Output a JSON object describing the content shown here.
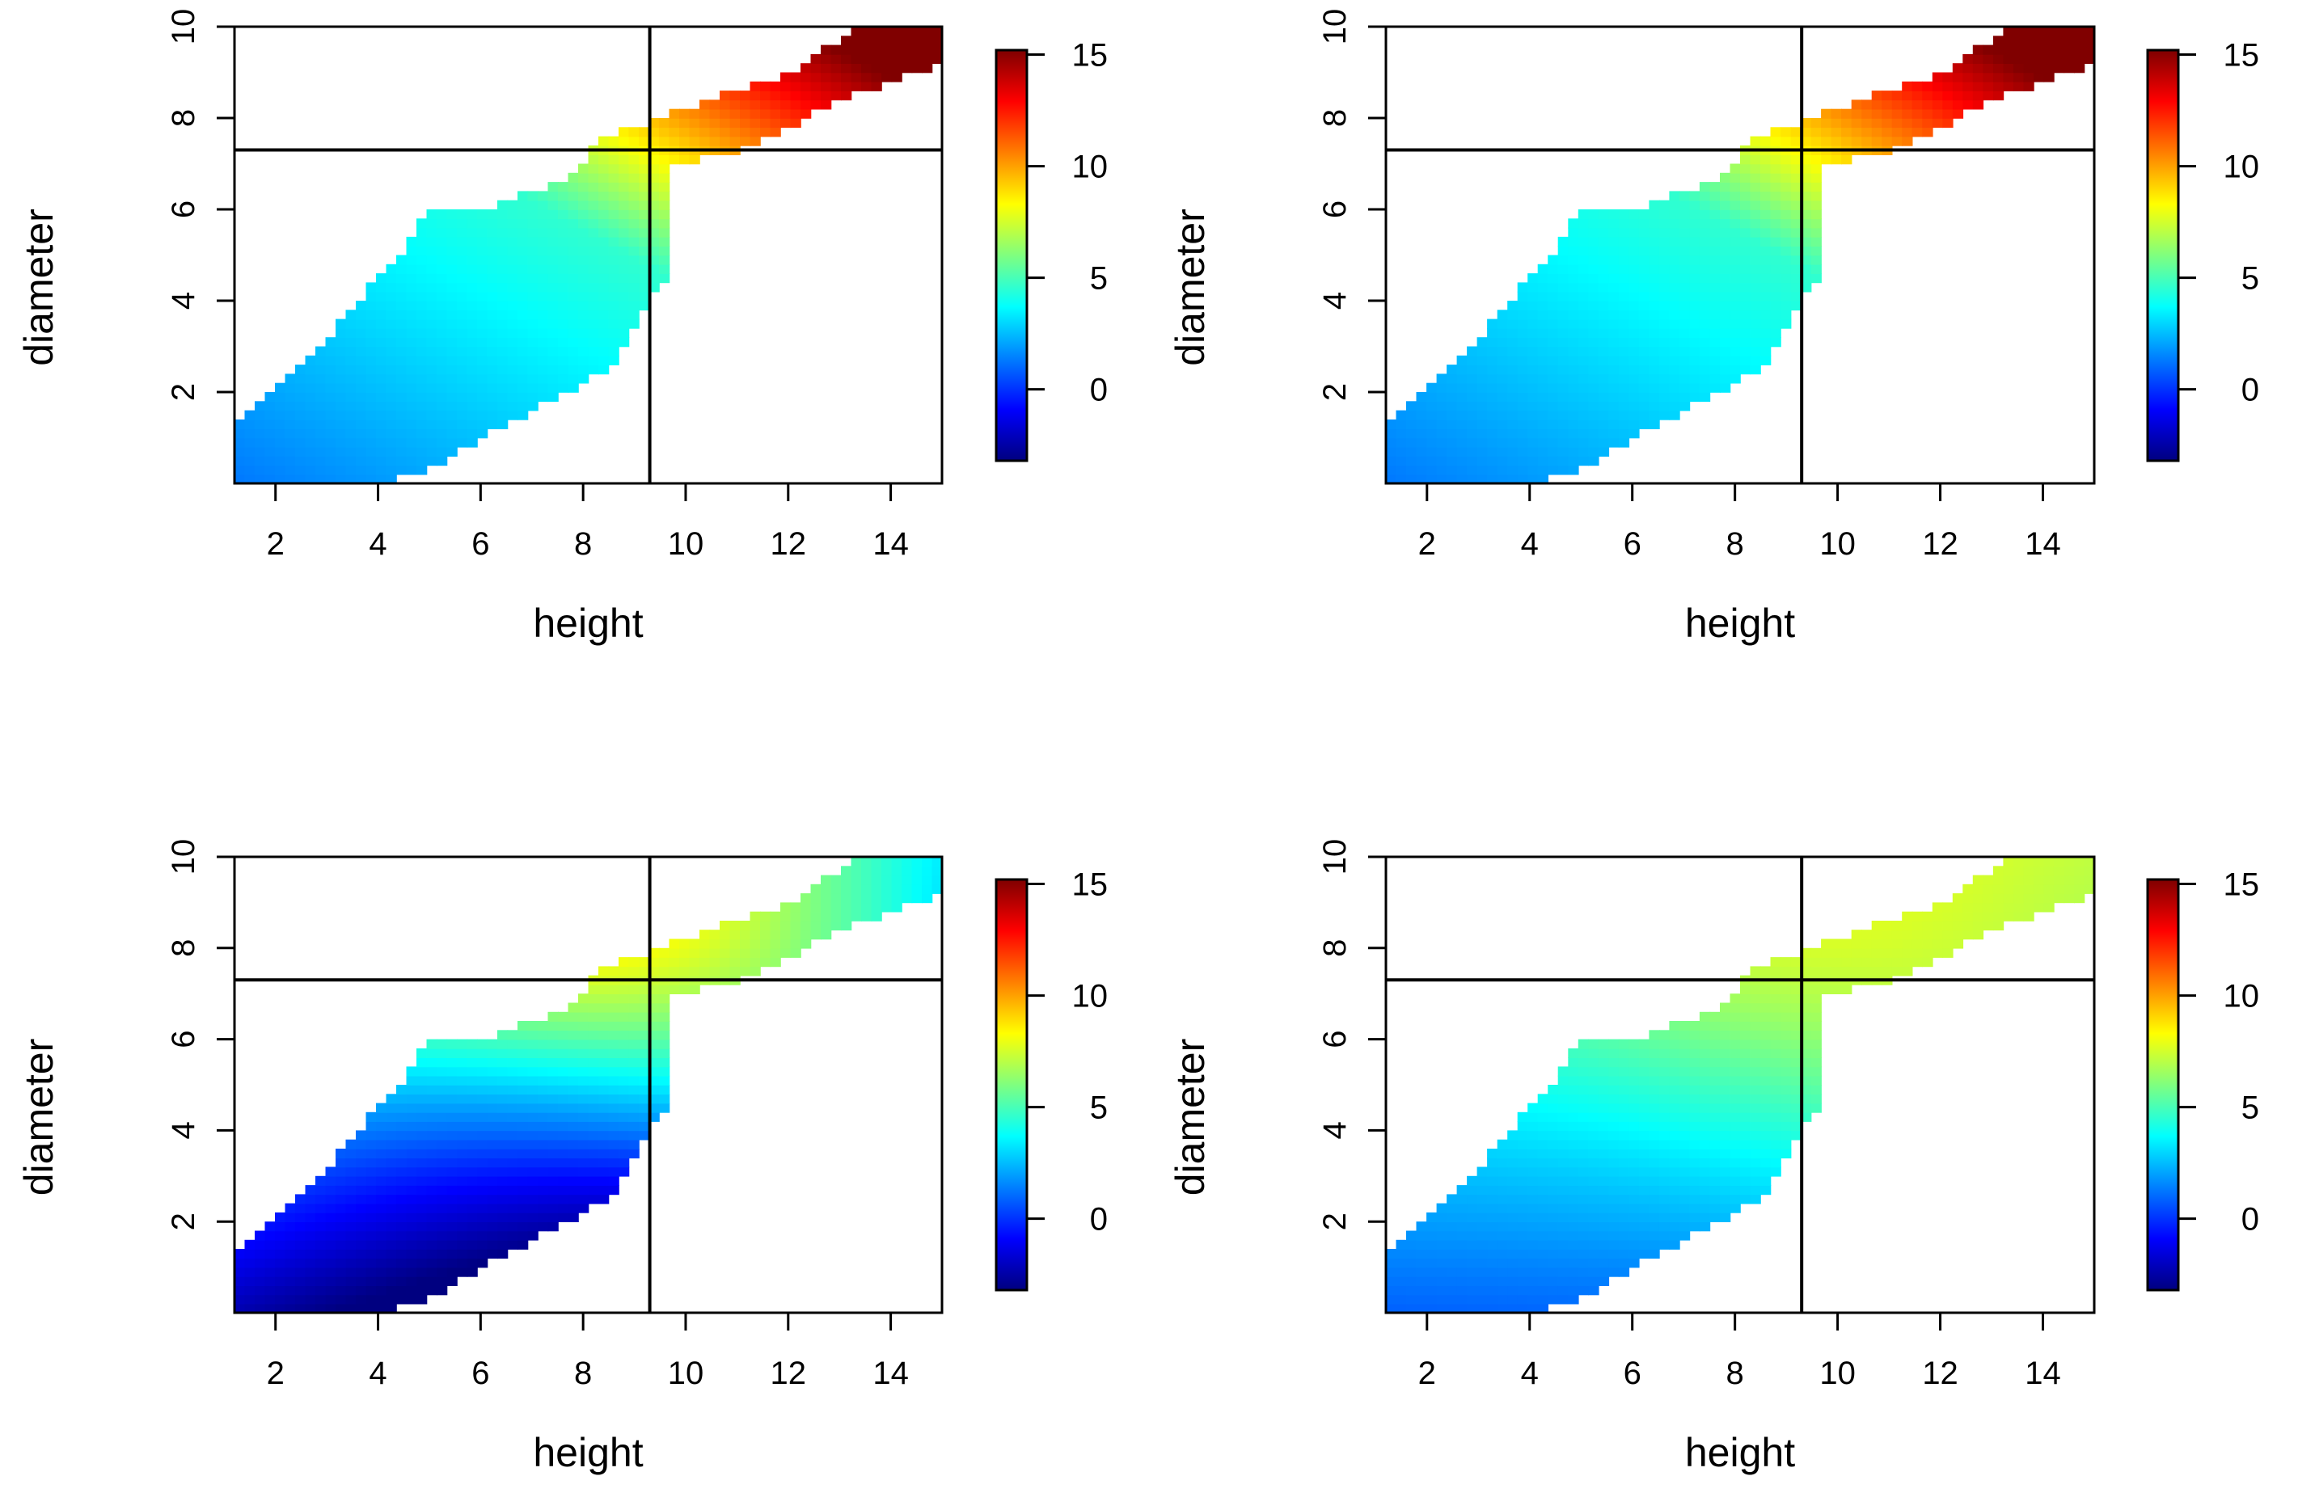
{
  "chart_data": [
    {
      "type": "heatmap",
      "panel": "top-left",
      "xlabel": "height",
      "ylabel": "diameter",
      "xlim": [
        1.2,
        15.0
      ],
      "ylim": [
        0.0,
        10.0
      ],
      "xticks": [
        2,
        4,
        6,
        8,
        10,
        12,
        14
      ],
      "yticks": [
        2,
        4,
        6,
        8,
        10
      ],
      "ref_lines": {
        "x": 9.3,
        "y": 7.3
      },
      "colorbar": {
        "ticks": [
          0,
          5,
          10,
          15
        ],
        "range": [
          -3.2,
          15.2
        ]
      },
      "surface": {
        "base": 1.0,
        "ramp_start": 6.5,
        "ramp_gain": 1.9,
        "curve": 0.0,
        "slope": 0.0
      }
    },
    {
      "type": "heatmap",
      "panel": "top-right",
      "xlabel": "height",
      "ylabel": "diameter",
      "xlim": [
        1.2,
        15.0
      ],
      "ylim": [
        0.0,
        10.0
      ],
      "xticks": [
        2,
        4,
        6,
        8,
        10,
        12,
        14
      ],
      "yticks": [
        2,
        4,
        6,
        8,
        10
      ],
      "ref_lines": {
        "x": 9.3,
        "y": 7.3
      },
      "colorbar": {
        "ticks": [
          0,
          5,
          10,
          15
        ],
        "range": [
          -3.2,
          15.2
        ]
      },
      "surface": {
        "base": 1.0,
        "ramp_start": 6.5,
        "ramp_gain": 1.9,
        "curve": 0.0,
        "slope": 0.0
      }
    },
    {
      "type": "heatmap",
      "panel": "bottom-left",
      "xlabel": "height",
      "ylabel": "diameter",
      "xlim": [
        1.2,
        15.0
      ],
      "ylim": [
        0.0,
        10.0
      ],
      "xticks": [
        2,
        4,
        6,
        8,
        10,
        12,
        14
      ],
      "yticks": [
        2,
        4,
        6,
        8,
        10
      ],
      "ref_lines": {
        "x": 9.3,
        "y": 7.3
      },
      "colorbar": {
        "ticks": [
          0,
          5,
          10,
          15
        ],
        "range": [
          -3.2,
          15.2
        ]
      },
      "surface": {
        "base": -1.8,
        "ramp_start": 0.0,
        "ramp_gain": 0.0,
        "curve": 6.2,
        "slope": 2.7
      }
    },
    {
      "type": "heatmap",
      "panel": "bottom-right",
      "xlabel": "height",
      "ylabel": "diameter",
      "xlim": [
        1.2,
        15.0
      ],
      "ylim": [
        0.0,
        10.0
      ],
      "xticks": [
        2,
        4,
        6,
        8,
        10,
        12,
        14
      ],
      "yticks": [
        2,
        4,
        6,
        8,
        10
      ],
      "ref_lines": {
        "x": 9.3,
        "y": 7.3
      },
      "colorbar": {
        "ticks": [
          0,
          5,
          10,
          15
        ],
        "range": [
          -3.2,
          15.2
        ]
      },
      "surface": {
        "base": 0.8,
        "ramp_start": 0.0,
        "ramp_gain": 0.0,
        "curve": 2.3,
        "slope": 0.75
      }
    }
  ]
}
